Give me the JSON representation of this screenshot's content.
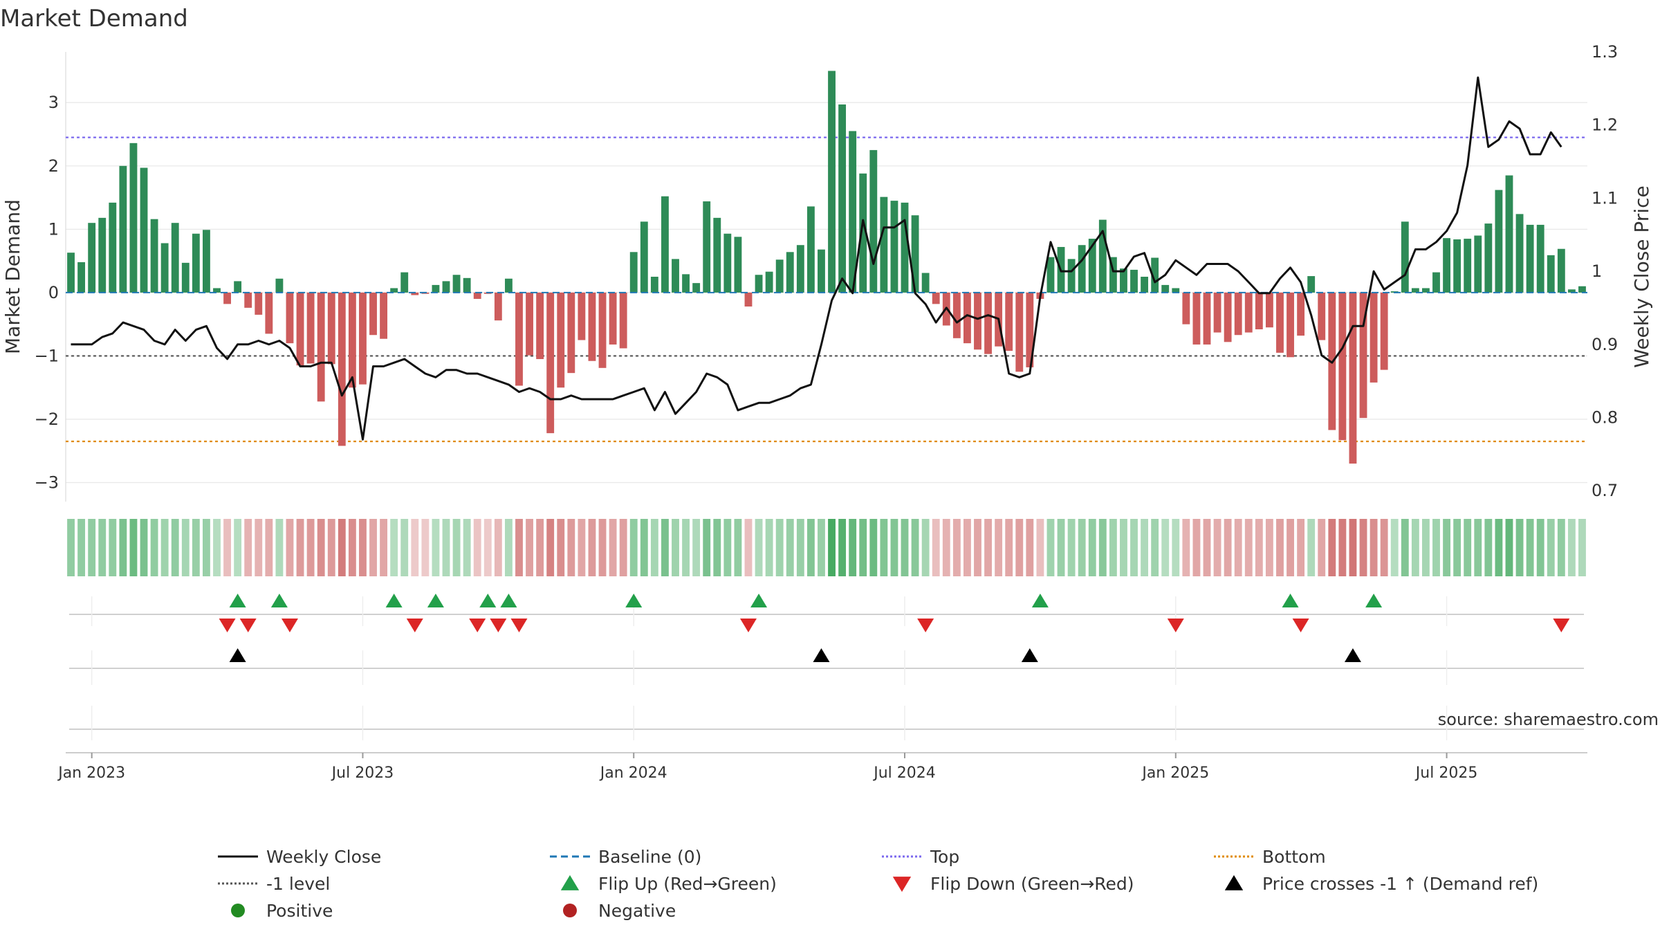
{
  "chart_data": {
    "type": "bar",
    "title": "Market Demand",
    "ylabel_left": "Market Demand",
    "ylabel_right": "Weekly Close Price",
    "source": "source: sharemaestro.com",
    "x_tick_labels": [
      "Jan 2023",
      "Jul 2023",
      "Jan 2024",
      "Jul 2024",
      "Jan 2025",
      "Jul 2025"
    ],
    "x_tick_week_index": [
      2,
      28,
      54,
      80,
      106,
      132
    ],
    "ylim_left": [
      -3.3,
      3.8
    ],
    "yticks_left": [
      3,
      2,
      1,
      0,
      -1,
      -2,
      -3
    ],
    "ytick_labels_left": [
      "3",
      "2",
      "1",
      "0",
      "−1",
      "−2",
      "−3"
    ],
    "ylim_right": [
      0.685,
      1.3
    ],
    "yticks_right": [
      1.3,
      1.2,
      1.1,
      1.0,
      0.9,
      0.8,
      0.7
    ],
    "ytick_labels_right": [
      "1.3",
      "1.2",
      "1.1",
      "1",
      "0.9",
      "0.8",
      "0.7"
    ],
    "reference_lines": {
      "top": 2.45,
      "bottom": -2.35,
      "minus_one": -1,
      "baseline": 0
    },
    "demand": [
      0.63,
      0.48,
      1.1,
      1.18,
      1.42,
      2.0,
      2.36,
      1.97,
      1.16,
      0.78,
      1.1,
      0.47,
      0.93,
      0.99,
      0.07,
      -0.18,
      0.18,
      -0.24,
      -0.35,
      -0.65,
      0.22,
      -0.8,
      -1.15,
      -1.12,
      -1.72,
      -1.13,
      -2.42,
      -1.5,
      -1.45,
      -0.67,
      -0.73,
      0.07,
      0.32,
      -0.04,
      -0.02,
      0.12,
      0.18,
      0.28,
      0.23,
      -0.1,
      -0.02,
      -0.44,
      0.22,
      -1.47,
      -0.99,
      -1.05,
      -2.22,
      -1.5,
      -1.27,
      -0.75,
      -1.08,
      -1.19,
      -0.82,
      -0.88,
      0.64,
      1.12,
      0.25,
      1.52,
      0.53,
      0.29,
      0.15,
      1.44,
      1.18,
      0.93,
      0.88,
      -0.22,
      0.28,
      0.33,
      0.52,
      0.64,
      0.75,
      1.36,
      0.68,
      3.5,
      2.97,
      2.55,
      1.88,
      2.25,
      1.51,
      1.45,
      1.42,
      1.22,
      0.31,
      -0.18,
      -0.52,
      -0.72,
      -0.8,
      -0.9,
      -0.97,
      -0.85,
      -0.92,
      -1.25,
      -1.18,
      -0.1,
      0.56,
      0.72,
      0.53,
      0.75,
      0.85,
      1.15,
      0.56,
      0.38,
      0.36,
      0.25,
      0.55,
      0.12,
      0.07,
      -0.5,
      -0.82,
      -0.82,
      -0.63,
      -0.78,
      -0.67,
      -0.63,
      -0.58,
      -0.55,
      -0.95,
      -1.02,
      -0.68,
      0.26,
      -0.75,
      -2.17,
      -2.33,
      -2.7,
      -1.98,
      -1.42,
      -1.22,
      0.02,
      1.12,
      0.07,
      0.07,
      0.32,
      0.86,
      0.84,
      0.85,
      0.9,
      1.09,
      1.62,
      1.85,
      1.24,
      1.07,
      1.07,
      0.59,
      0.69,
      0.05,
      0.1
    ],
    "weekly_close": [
      0.9,
      0.9,
      0.9,
      0.91,
      0.915,
      0.93,
      0.925,
      0.92,
      0.905,
      0.9,
      0.92,
      0.905,
      0.92,
      0.925,
      0.895,
      0.88,
      0.9,
      0.9,
      0.905,
      0.9,
      0.905,
      0.895,
      0.87,
      0.87,
      0.875,
      0.875,
      0.83,
      0.855,
      0.77,
      0.87,
      0.87,
      0.875,
      0.88,
      0.87,
      0.86,
      0.855,
      0.865,
      0.865,
      0.86,
      0.86,
      0.855,
      0.85,
      0.845,
      0.835,
      0.84,
      0.835,
      0.825,
      0.825,
      0.83,
      0.825,
      0.825,
      0.825,
      0.825,
      0.83,
      0.835,
      0.84,
      0.81,
      0.835,
      0.805,
      0.82,
      0.835,
      0.86,
      0.855,
      0.845,
      0.81,
      0.815,
      0.82,
      0.82,
      0.825,
      0.83,
      0.84,
      0.845,
      0.9,
      0.96,
      0.99,
      0.97,
      1.07,
      1.01,
      1.06,
      1.06,
      1.07,
      0.97,
      0.955,
      0.93,
      0.95,
      0.93,
      0.94,
      0.935,
      0.94,
      0.935,
      0.86,
      0.855,
      0.86,
      0.965,
      1.04,
      1.0,
      1.0,
      1.015,
      1.035,
      1.055,
      1.0,
      1.0,
      1.02,
      1.025,
      0.985,
      0.995,
      1.015,
      1.005,
      0.995,
      1.01,
      1.01,
      1.01,
      1.0,
      0.985,
      0.97,
      0.97,
      0.99,
      1.005,
      0.985,
      0.94,
      0.885,
      0.875,
      0.895,
      0.925,
      0.925,
      1.0,
      0.975,
      0.985,
      0.995,
      1.03,
      1.03,
      1.04,
      1.055,
      1.08,
      1.145,
      1.265,
      1.17,
      1.18,
      1.205,
      1.195,
      1.16,
      1.16,
      1.19,
      1.17
    ],
    "strip_intensity": [
      0.5,
      0.5,
      0.5,
      0.5,
      0.5,
      0.65,
      0.75,
      0.65,
      0.5,
      0.4,
      0.5,
      0.35,
      0.45,
      0.45,
      0.25,
      0.3,
      0.25,
      0.4,
      0.4,
      0.45,
      0.3,
      0.5,
      0.6,
      0.6,
      0.7,
      0.6,
      0.85,
      0.7,
      0.7,
      0.5,
      0.5,
      0.25,
      0.3,
      0.2,
      0.2,
      0.25,
      0.3,
      0.35,
      0.3,
      0.25,
      0.2,
      0.35,
      0.3,
      0.7,
      0.55,
      0.6,
      0.8,
      0.7,
      0.6,
      0.5,
      0.6,
      0.6,
      0.5,
      0.55,
      0.5,
      0.6,
      0.35,
      0.65,
      0.4,
      0.35,
      0.3,
      0.65,
      0.6,
      0.5,
      0.5,
      0.3,
      0.3,
      0.35,
      0.4,
      0.45,
      0.45,
      0.6,
      0.45,
      1.0,
      0.9,
      0.8,
      0.7,
      0.75,
      0.6,
      0.6,
      0.6,
      0.55,
      0.35,
      0.3,
      0.4,
      0.45,
      0.45,
      0.5,
      0.5,
      0.45,
      0.5,
      0.55,
      0.55,
      0.3,
      0.4,
      0.45,
      0.4,
      0.45,
      0.5,
      0.55,
      0.4,
      0.35,
      0.35,
      0.3,
      0.4,
      0.25,
      0.25,
      0.4,
      0.5,
      0.5,
      0.45,
      0.5,
      0.45,
      0.45,
      0.45,
      0.45,
      0.55,
      0.55,
      0.5,
      0.3,
      0.5,
      0.85,
      0.85,
      0.9,
      0.8,
      0.7,
      0.65,
      0.25,
      0.6,
      0.35,
      0.35,
      0.4,
      0.55,
      0.55,
      0.55,
      0.55,
      0.6,
      0.75,
      0.8,
      0.65,
      0.6,
      0.6,
      0.45,
      0.5,
      0.3,
      0.3
    ],
    "flip_up_weeks": [
      16,
      20,
      31,
      35,
      40,
      42,
      54,
      66,
      93,
      117,
      125
    ],
    "flip_down_weeks": [
      15,
      17,
      21,
      33,
      39,
      41,
      43,
      65,
      82,
      106,
      118,
      143
    ],
    "price_cross_weeks": [
      16,
      72,
      92,
      123
    ],
    "colors": {
      "positive": "#2e8b57",
      "negative": "#cd5c5c",
      "weekly_close": "#111111",
      "baseline": "#1f77b4",
      "top": "#7b68ee",
      "bottom": "#e08b00",
      "minus_one": "#555555",
      "flip_up": "#22a04a",
      "flip_down": "#dc2626",
      "cross": "#000000",
      "legend_positive": "#228b22",
      "legend_negative": "#b22222"
    },
    "legend": [
      {
        "label": "Weekly Close",
        "kind": "line",
        "color": "#111111",
        "dash": ""
      },
      {
        "label": "Baseline (0)",
        "kind": "line",
        "color": "#1f77b4",
        "dash": "10,6"
      },
      {
        "label": "Top",
        "kind": "line",
        "color": "#7b68ee",
        "dash": "3,3"
      },
      {
        "label": "Bottom",
        "kind": "line",
        "color": "#e08b00",
        "dash": "3,3"
      },
      {
        "label": "-1 level",
        "kind": "line",
        "color": "#555555",
        "dash": "3,3"
      },
      {
        "label": "Flip Up (Red→Green)",
        "kind": "tri-up",
        "color": "#22a04a"
      },
      {
        "label": "Flip Down (Green→Red)",
        "kind": "tri-down",
        "color": "#dc2626"
      },
      {
        "label": "Price crosses -1 ↑ (Demand ref)",
        "kind": "tri-up",
        "color": "#000000"
      },
      {
        "label": "Positive",
        "kind": "dot",
        "color": "#228b22"
      },
      {
        "label": "Negative",
        "kind": "dot",
        "color": "#b22222"
      }
    ]
  }
}
